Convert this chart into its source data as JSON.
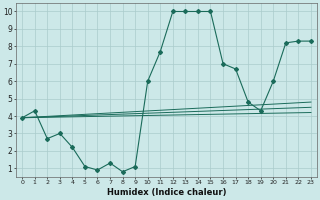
{
  "xlabel": "Humidex (Indice chaleur)",
  "bg_color": "#cce8e8",
  "grid_color": "#aacccc",
  "line_color": "#1a6b5a",
  "xlim": [
    -0.5,
    23.5
  ],
  "ylim": [
    0.5,
    10.5
  ],
  "xticks": [
    0,
    1,
    2,
    3,
    4,
    5,
    6,
    7,
    8,
    9,
    10,
    11,
    12,
    13,
    14,
    15,
    16,
    17,
    18,
    19,
    20,
    21,
    22,
    23
  ],
  "yticks": [
    1,
    2,
    3,
    4,
    5,
    6,
    7,
    8,
    9,
    10
  ],
  "line1_x": [
    0,
    1,
    2,
    3,
    4,
    5,
    6,
    7,
    8,
    9,
    10,
    11,
    12,
    13,
    14,
    15,
    16,
    17,
    18,
    19,
    20,
    21,
    22,
    23
  ],
  "line1_y": [
    3.9,
    4.3,
    2.7,
    3.0,
    2.2,
    1.1,
    0.9,
    1.3,
    0.8,
    1.1,
    6.0,
    7.7,
    10.0,
    10.0,
    10.0,
    10.0,
    7.0,
    6.7,
    4.8,
    4.3,
    6.0,
    8.2,
    8.3,
    8.3
  ],
  "line2_x": [
    0,
    23
  ],
  "line2_y": [
    3.9,
    4.2
  ],
  "line3_x": [
    0,
    23
  ],
  "line3_y": [
    3.9,
    4.5
  ],
  "line4_x": [
    0,
    23
  ],
  "line4_y": [
    3.9,
    4.8
  ]
}
